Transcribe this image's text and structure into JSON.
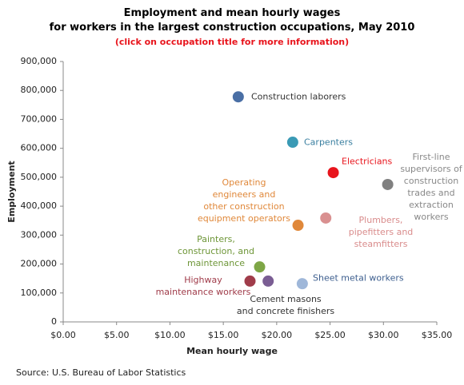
{
  "chart_data": {
    "type": "scatter",
    "title": "Employment and mean hourly wages\nfor workers in the largest construction occupations, May 2010",
    "subtitle": "(click on occupation title for more information)",
    "x_label": "Mean hourly wage",
    "y_label": "Employment",
    "source": "Source: U.S. Bureau of Labor Statistics",
    "xlim": [
      0,
      35
    ],
    "ylim": [
      0,
      900000
    ],
    "xticks": [
      {
        "value": 0,
        "label": "$0.00"
      },
      {
        "value": 5,
        "label": "$5.00"
      },
      {
        "value": 10,
        "label": "$10.00"
      },
      {
        "value": 15,
        "label": "$15.00"
      },
      {
        "value": 20,
        "label": "$20.00"
      },
      {
        "value": 25,
        "label": "$25.00"
      },
      {
        "value": 30,
        "label": "$30.00"
      },
      {
        "value": 35,
        "label": "$35.00"
      }
    ],
    "yticks": [
      0,
      {
        "value": 100000,
        "label": "100,000"
      },
      {
        "value": 200000,
        "label": "200,000"
      },
      {
        "value": 300000,
        "label": "300,000"
      },
      {
        "value": 400000,
        "label": "400,000"
      },
      {
        "value": 500000,
        "label": "500,000"
      },
      {
        "value": 600000,
        "label": "600,000"
      },
      {
        "value": 700000,
        "label": "700,000"
      },
      {
        "value": 800000,
        "label": "800,000"
      },
      {
        "value": 900000,
        "label": "900,000"
      }
    ],
    "series": [
      {
        "name": "Construction laborers",
        "color": "#4a6fa5",
        "x": [
          16.4
        ],
        "values": [
          778000
        ]
      },
      {
        "name": "Carpenters",
        "color": "#3a9ab5",
        "x": [
          21.5
        ],
        "values": [
          621000
        ]
      },
      {
        "name": "Electricians",
        "color": "#e8141c",
        "x": [
          25.3
        ],
        "values": [
          516000
        ]
      },
      {
        "name": "First-line\nsupervisors of\nconstruction\ntrades and\nextraction\nworkers",
        "color": "#808080",
        "x": [
          30.4
        ],
        "values": [
          475000
        ]
      },
      {
        "name": "Operating\nengineers and\nother construction\nequipment operators",
        "color": "#e0883a",
        "x": [
          22.0
        ],
        "values": [
          334000
        ]
      },
      {
        "name": "Plumbers,\npipefitters and\nsteamfitters",
        "color": "#d99090",
        "x": [
          24.6
        ],
        "values": [
          359000
        ]
      },
      {
        "name": "Painters,\nconstruction, and\nmaintenance",
        "color": "#7ea646",
        "x": [
          18.4
        ],
        "values": [
          190000
        ]
      },
      {
        "name": "Highway\nmaintenance workers",
        "color": "#a03c4a",
        "x": [
          17.5
        ],
        "values": [
          141000
        ]
      },
      {
        "name": "Cement masons\nand concrete finishers",
        "color": "#7a5d93",
        "x": [
          19.2
        ],
        "values": [
          141000
        ]
      },
      {
        "name": "Sheet metal workers",
        "color": "#9fb7d9",
        "x": [
          22.4
        ],
        "values": [
          132000
        ]
      }
    ]
  }
}
